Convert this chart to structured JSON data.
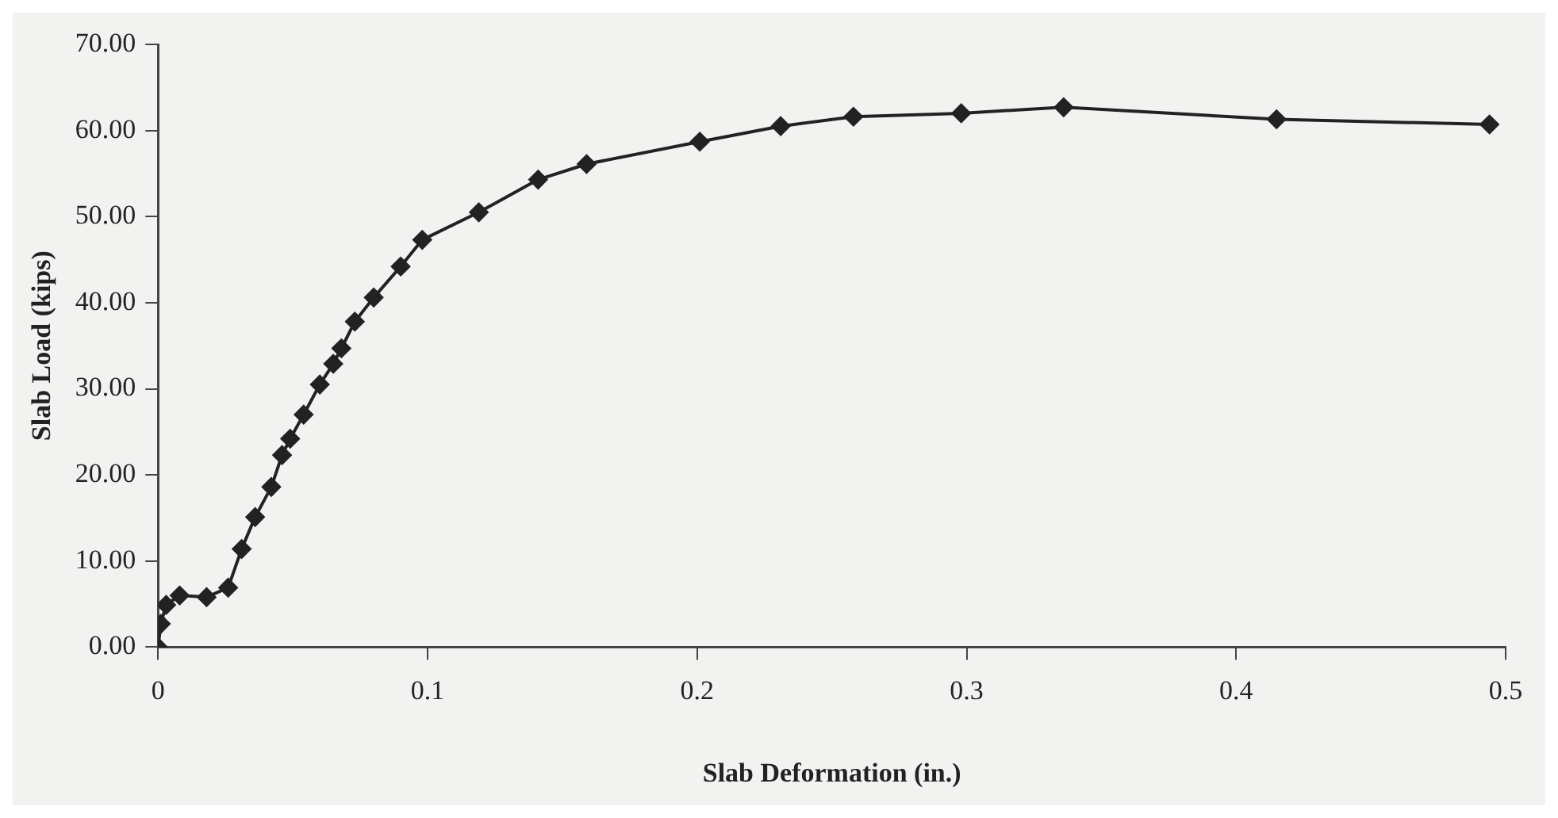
{
  "chart_data": {
    "type": "line",
    "xlabel": "Slab Deformation (in.)",
    "ylabel": "Slab Load (kips)",
    "x": [
      0,
      0.001,
      0.003,
      0.008,
      0.018,
      0.026,
      0.031,
      0.036,
      0.042,
      0.046,
      0.049,
      0.054,
      0.06,
      0.065,
      0.068,
      0.073,
      0.08,
      0.09,
      0.098,
      0.119,
      0.141,
      0.159,
      0.201,
      0.231,
      0.258,
      0.298,
      0.336,
      0.415,
      0.494
    ],
    "series": [
      {
        "color": "#222222",
        "values": [
          0,
          2.7,
          4.9,
          6.0,
          5.8,
          6.9,
          11.4,
          15.1,
          18.6,
          22.3,
          24.2,
          27.0,
          30.5,
          32.9,
          34.7,
          37.8,
          40.6,
          44.2,
          47.3,
          50.5,
          54.3,
          56.1,
          58.7,
          60.5,
          61.6,
          62.0,
          62.7,
          61.3,
          60.7
        ]
      }
    ],
    "xlim": [
      0,
      0.5
    ],
    "xticks": [
      0,
      0.1,
      0.2,
      0.3,
      0.4,
      0.5
    ],
    "ylim": [
      0,
      70
    ],
    "yticks": [
      {
        "value": 0,
        "label": "0.00"
      },
      {
        "value": 10,
        "label": "10.00"
      },
      {
        "value": 20,
        "label": "20.00"
      },
      {
        "value": 30,
        "label": "30.00"
      },
      {
        "value": 40,
        "label": "40.00"
      },
      {
        "value": 50,
        "label": "50.00"
      },
      {
        "value": 60,
        "label": "60.00"
      },
      {
        "value": 70,
        "label": "70.00"
      }
    ],
    "grid": false,
    "legend": false,
    "marker": "diamond",
    "line_style": "solid"
  }
}
